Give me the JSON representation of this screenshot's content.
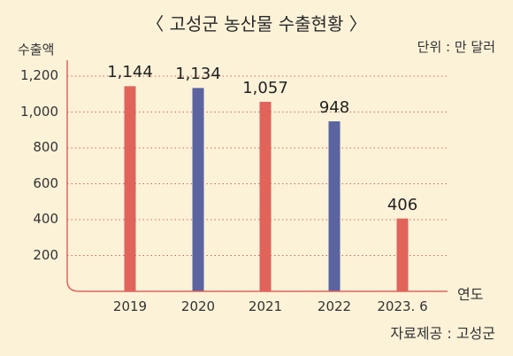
{
  "title": "〈 고성군 농산물 수출현황 〉",
  "unit_text": "단위 : 만 달러",
  "source_text": "자료제공 : 고성군",
  "colors": {
    "background": "#fbf2d8",
    "bar_red": "#e0645a",
    "bar_blue": "#5b63a0",
    "axis": "#e0645a",
    "grid": "#e0645a"
  },
  "chart_data": {
    "type": "bar",
    "ylabel": "수출액",
    "xlabel": "연도",
    "categories": [
      "2019",
      "2020",
      "2021",
      "2022",
      "2023. 6"
    ],
    "values": [
      1144,
      1134,
      1057,
      948,
      406
    ],
    "value_labels": [
      "1,144",
      "1,134",
      "1,057",
      "948",
      "406"
    ],
    "bar_colors": [
      "#e0645a",
      "#5b63a0",
      "#e0645a",
      "#5b63a0",
      "#e0645a"
    ],
    "yticks": [
      200,
      400,
      600,
      800,
      1000,
      1200
    ],
    "ytick_labels": [
      "200",
      "400",
      "600",
      "800",
      "1,000",
      "1,200"
    ],
    "ylim": [
      0,
      1200
    ],
    "grid": true,
    "grid_style": "dotted"
  }
}
